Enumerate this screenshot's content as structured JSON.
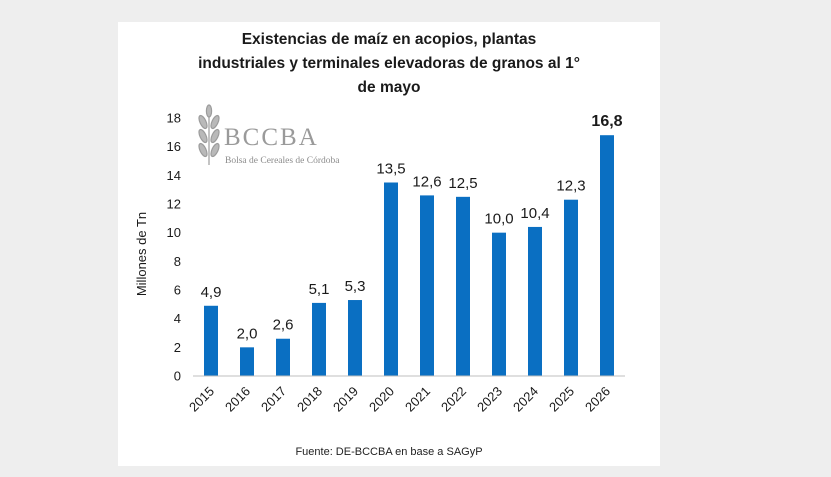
{
  "chart_data": {
    "type": "bar",
    "title_lines": [
      "Existencias de maíz en acopios, plantas",
      "industriales y terminales elevadoras de granos al 1°",
      "de mayo"
    ],
    "ylabel": "Millones de Tn",
    "xlabel": "",
    "categories": [
      "2015",
      "2016",
      "2017",
      "2018",
      "2019",
      "2020",
      "2021",
      "2022",
      "2023",
      "2024",
      "2025",
      "2026"
    ],
    "values": [
      4.9,
      2.0,
      2.6,
      5.1,
      5.3,
      13.5,
      12.6,
      12.5,
      10.0,
      10.4,
      12.3,
      16.8
    ],
    "value_labels": [
      "4,9",
      "2,0",
      "2,6",
      "5,1",
      "5,3",
      "13,5",
      "12,6",
      "12,5",
      "10,0",
      "10,4",
      "12,3",
      "16,8"
    ],
    "highlight_index": 11,
    "ylim": [
      0,
      18
    ],
    "yticks": [
      0,
      2,
      4,
      6,
      8,
      10,
      12,
      14,
      16,
      18
    ],
    "bar_color": "#0a6fc2",
    "grid": false,
    "source": "Fuente: DE-BCCBA en base a SAGyP"
  },
  "logo": {
    "name": "BCCBA",
    "subtitle": "Bolsa de Cereales de Córdoba",
    "icon": "wheat-icon"
  }
}
